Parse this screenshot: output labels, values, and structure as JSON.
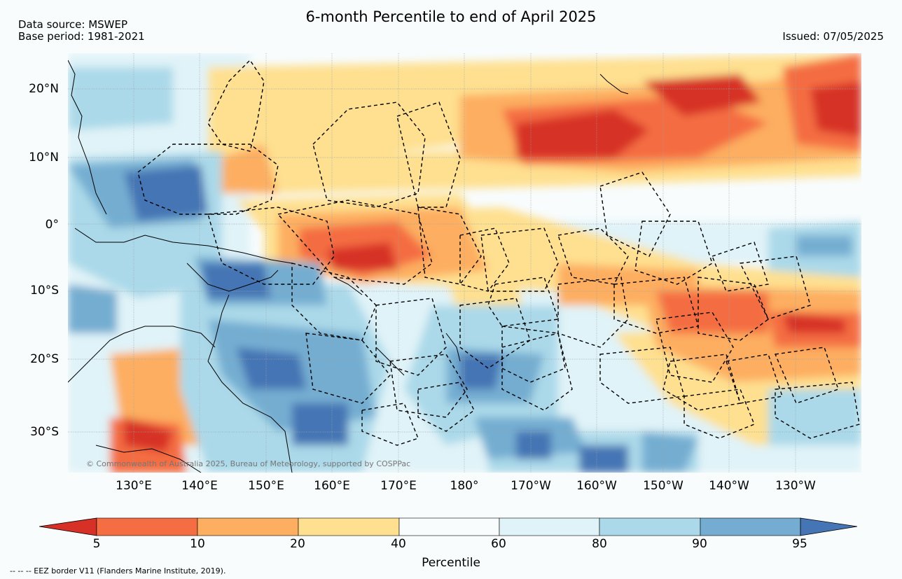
{
  "header": {
    "title": "6-month Percentile to end of April 2025",
    "data_source": "Data source: MSWEP",
    "base_period": "Base period: 1981-2021",
    "issued": "Issued: 07/05/2025"
  },
  "map": {
    "lat_labels": [
      "20°N",
      "10°N",
      "0°",
      "10°S",
      "20°S",
      "30°S"
    ],
    "lon_labels": [
      "130°E",
      "140°E",
      "150°E",
      "160°E",
      "170°E",
      "180°",
      "170°W",
      "160°W",
      "150°W",
      "140°W",
      "130°W"
    ],
    "copyright": "© Commonwealth of Australia 2025, Bureau of Meteorology, supported by COSPPac",
    "palette": {
      "p0_5": "#d73027",
      "p5_10": "#f46d43",
      "p10_20": "#fdae61",
      "p20_40": "#fee090",
      "p40_60": "#f8fcfd",
      "p60_80": "#e0f3f8",
      "p80_90": "#abd9e9",
      "p90_95": "#74add1",
      "p95_100": "#4575b4"
    }
  },
  "colorbar": {
    "ticks": [
      "5",
      "10",
      "20",
      "40",
      "60",
      "80",
      "90",
      "95"
    ],
    "label": "Percentile"
  },
  "footer": {
    "eez_note": "--  --  -- EEZ border V11 (Flanders Marine Institute, 2019)."
  }
}
